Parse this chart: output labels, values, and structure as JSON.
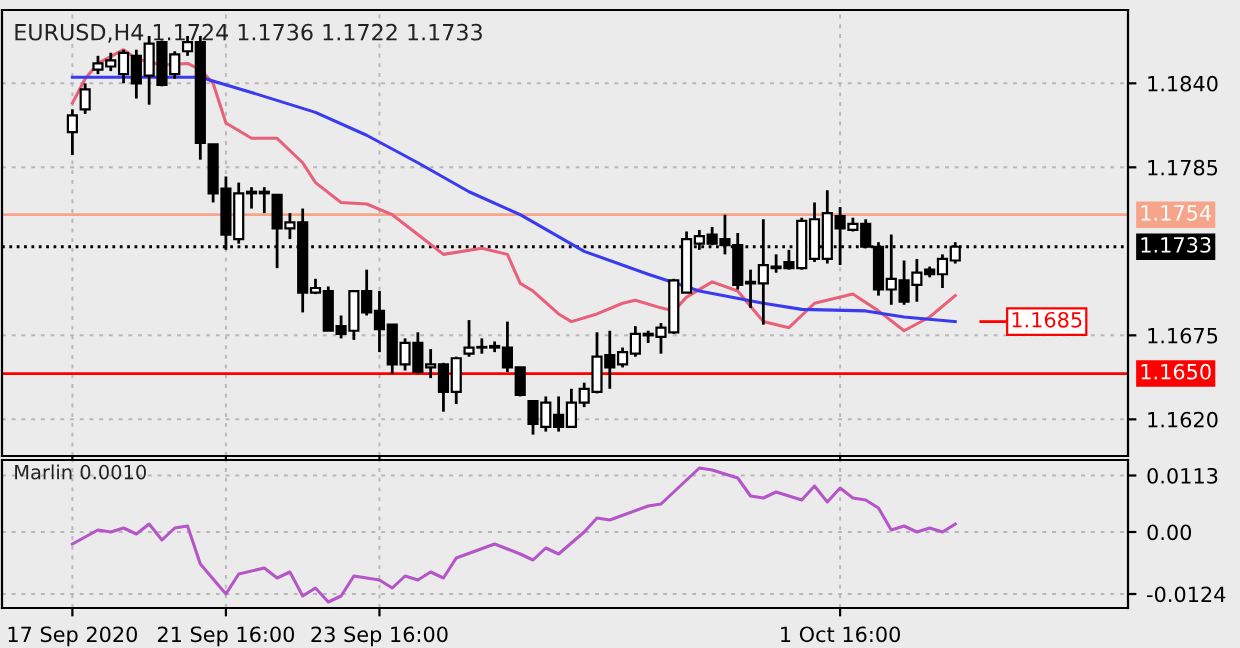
{
  "chart_data": [
    {
      "type": "candlestick",
      "annotations": [
        "EURUSD,H4 1.1724 1.1736 1.1722 1.1733",
        "1.1685"
      ],
      "categories": [
        null,
        null,
        null,
        null,
        null,
        null,
        null,
        null,
        null,
        null,
        null,
        null,
        null,
        null,
        null,
        null,
        null,
        null,
        null,
        null,
        null,
        null,
        null,
        null,
        null,
        null,
        null,
        null,
        null,
        null,
        null,
        null,
        null,
        null,
        null,
        null,
        null,
        null,
        null,
        null,
        null,
        null,
        null,
        null,
        null,
        null,
        null,
        null,
        null,
        null,
        null,
        null,
        null,
        null,
        null,
        null,
        null,
        null,
        null,
        null,
        null,
        null,
        null,
        null,
        null,
        null,
        null,
        null,
        null,
        null
      ],
      "ohlc": [
        [
          1.1808,
          1.1823,
          1.1793,
          1.1819
        ],
        [
          1.1823,
          1.184,
          1.182,
          1.1836
        ],
        [
          1.1849,
          1.1858,
          1.1846,
          1.1853
        ],
        [
          1.1851,
          1.186,
          1.1848,
          1.1855
        ],
        [
          1.1846,
          1.1862,
          1.184,
          1.186
        ],
        [
          1.1858,
          1.1862,
          1.183,
          1.184
        ],
        [
          1.1845,
          1.1871,
          1.1826,
          1.1866
        ],
        [
          1.1867,
          1.1868,
          1.1838,
          1.1839
        ],
        [
          1.1846,
          1.1861,
          1.1843,
          1.1859
        ],
        [
          1.1861,
          1.1871,
          1.1858,
          1.1867
        ],
        [
          1.1867,
          1.1871,
          1.179,
          1.1801
        ],
        [
          1.18,
          1.18,
          1.1762,
          1.1768
        ],
        [
          1.1771,
          1.1779,
          1.1731,
          1.1741
        ],
        [
          1.1738,
          1.1775,
          1.1735,
          1.1768
        ],
        [
          1.1769,
          1.1772,
          1.1758,
          1.1768
        ],
        [
          1.1768,
          1.1772,
          1.1755,
          1.1769
        ],
        [
          1.1767,
          1.1767,
          1.1719,
          1.1745
        ],
        [
          1.1745,
          1.1755,
          1.1738,
          1.1749
        ],
        [
          1.1749,
          1.1758,
          1.169,
          1.1703
        ],
        [
          1.1703,
          1.1712,
          1.1702,
          1.1706
        ],
        [
          1.1704,
          1.1707,
          1.1678,
          1.1678
        ],
        [
          1.1681,
          1.1688,
          1.1673,
          1.1676
        ],
        [
          1.1678,
          1.1704,
          1.1672,
          1.1704
        ],
        [
          1.1704,
          1.1718,
          1.1688,
          1.169
        ],
        [
          1.1691,
          1.1704,
          1.1664,
          1.1679
        ],
        [
          1.1682,
          1.1682,
          1.165,
          1.1656
        ],
        [
          1.1656,
          1.1673,
          1.1652,
          1.167
        ],
        [
          1.167,
          1.1677,
          1.165,
          1.1651
        ],
        [
          1.1654,
          1.1666,
          1.1647,
          1.1656
        ],
        [
          1.1656,
          1.1657,
          1.1625,
          1.1638
        ],
        [
          1.1638,
          1.1661,
          1.163,
          1.166
        ],
        [
          1.1663,
          1.1685,
          1.1661,
          1.1667
        ],
        [
          1.1667,
          1.1673,
          1.1663,
          1.1667
        ],
        [
          1.1667,
          1.1671,
          1.1664,
          1.1668
        ],
        [
          1.1667,
          1.1684,
          1.1651,
          1.1654
        ],
        [
          1.1654,
          1.1654,
          1.1635,
          1.1636
        ],
        [
          1.1632,
          1.1632,
          1.161,
          1.1617
        ],
        [
          1.1615,
          1.1635,
          1.1612,
          1.1631
        ],
        [
          1.1623,
          1.1635,
          1.1612,
          1.1615
        ],
        [
          1.1615,
          1.164,
          1.1615,
          1.1631
        ],
        [
          1.1631,
          1.1644,
          1.1628,
          1.164
        ],
        [
          1.1638,
          1.1677,
          1.1637,
          1.1661
        ],
        [
          1.1662,
          1.1678,
          1.164,
          1.1654
        ],
        [
          1.1656,
          1.1667,
          1.1654,
          1.1664
        ],
        [
          1.1663,
          1.1681,
          1.1661,
          1.1676
        ],
        [
          1.1675,
          1.1678,
          1.167,
          1.1676
        ],
        [
          1.1674,
          1.1683,
          1.1663,
          1.168
        ],
        [
          1.1677,
          1.1712,
          1.1676,
          1.1711
        ],
        [
          1.1703,
          1.1743,
          1.1703,
          1.1738
        ],
        [
          1.1735,
          1.1744,
          1.1731,
          1.174
        ],
        [
          1.1741,
          1.1746,
          1.1734,
          1.1735
        ],
        [
          1.1738,
          1.1754,
          1.1728,
          1.1734
        ],
        [
          1.1734,
          1.1742,
          1.1705,
          1.1708
        ],
        [
          1.171,
          1.1718,
          1.1693,
          1.1709
        ],
        [
          1.1709,
          1.1751,
          1.1682,
          1.1721
        ],
        [
          1.1719,
          1.1728,
          1.1716,
          1.172
        ],
        [
          1.1723,
          1.1731,
          1.1718,
          1.1719
        ],
        [
          1.1719,
          1.1752,
          1.1718,
          1.175
        ],
        [
          1.1725,
          1.1762,
          1.1723,
          1.1751
        ],
        [
          1.1725,
          1.177,
          1.1722,
          1.1755
        ],
        [
          1.1753,
          1.1759,
          1.1721,
          1.1745
        ],
        [
          1.1744,
          1.1752,
          1.1743,
          1.1748
        ],
        [
          1.1748,
          1.1751,
          1.1732,
          1.1733
        ],
        [
          1.1733,
          1.1736,
          1.1701,
          1.1705
        ],
        [
          1.1705,
          1.1741,
          1.1695,
          1.1712
        ],
        [
          1.1711,
          1.1724,
          1.1695,
          1.1697
        ],
        [
          1.1708,
          1.1725,
          1.1697,
          1.1716
        ],
        [
          1.1718,
          1.172,
          1.1713,
          1.1715
        ],
        [
          1.1715,
          1.1728,
          1.1706,
          1.1725
        ],
        [
          1.1724,
          1.1736,
          1.1722,
          1.1733
        ]
      ],
      "color": "#000000",
      "series": [
        {
          "type": "line",
          "color": "#e8607a",
          "values": [
            1.1827,
            1.1843,
            1.1853,
            null,
            1.1862,
            1.1856,
            null,
            1.1852,
            null,
            1.1853,
            1.1849,
            1.184,
            1.1814,
            null,
            1.1804,
            null,
            1.1804,
            null,
            1.1788,
            1.1775,
            null,
            1.1762,
            null,
            1.1761,
            null,
            1.1754,
            null,
            1.1741,
            null,
            1.1728,
            null,
            null,
            1.1732,
            null,
            1.1728,
            1.1709,
            1.1704,
            null,
            1.1689,
            1.1684,
            null,
            1.1689,
            null,
            1.1696,
            1.1698,
            null,
            1.1693,
            1.1691,
            1.17,
            null,
            1.171,
            null,
            1.1704,
            null,
            1.1684,
            null,
            1.168,
            null,
            1.1696,
            null,
            null,
            1.1702,
            null,
            1.1691,
            null,
            1.1678,
            null,
            1.1687,
            null,
            1.1701
          ]
        },
        {
          "type": "line",
          "color": "#3a3af0",
          "values": [
            1.1844,
            null,
            null,
            null,
            null,
            null,
            null,
            null,
            null,
            null,
            1.1844,
            null,
            null,
            null,
            1.1834,
            null,
            null,
            null,
            null,
            1.1821,
            null,
            null,
            null,
            1.1806,
            null,
            null,
            null,
            1.1788,
            null,
            null,
            null,
            1.1769,
            null,
            null,
            null,
            1.1754,
            null,
            null,
            null,
            null,
            1.173,
            null,
            null,
            null,
            null,
            1.1715,
            null,
            null,
            null,
            1.1704,
            null,
            null,
            null,
            null,
            1.1696,
            null,
            null,
            1.1692,
            null,
            null,
            null,
            null,
            1.1691,
            null,
            null,
            1.1687,
            null,
            null,
            null,
            1.1684
          ]
        }
      ],
      "ylim": [
        1.1596,
        1.1888
      ],
      "yticks": [
        {
          "value": 1.184,
          "label": "1.1840"
        },
        1.1785,
        1.1675,
        {
          "value": 1.162,
          "label": "1.1620"
        }
      ],
      "ref_lines": [
        {
          "axis": "y",
          "value": 1.1754,
          "label": "1.1754",
          "color": "#f7a58a"
        },
        {
          "axis": "y",
          "value": 1.1733,
          "label": "1.1733",
          "color": "#000000",
          "line_style": "dotted"
        },
        {
          "axis": "y",
          "value": 1.165,
          "label": "1.1650",
          "color": "#ff0000"
        }
      ],
      "grid": true,
      "tick_labels": "y"
    },
    {
      "type": "line",
      "annotations": [
        "Marlin 0.0010"
      ],
      "categories": [
        "17 Sep 2020",
        null,
        null,
        null,
        null,
        null,
        null,
        null,
        null,
        null,
        null,
        null,
        "21 Sep 16:00",
        null,
        null,
        null,
        null,
        null,
        null,
        null,
        null,
        null,
        null,
        null,
        "23 Sep 16:00",
        null,
        null,
        null,
        null,
        null,
        null,
        null,
        null,
        null,
        null,
        null,
        null,
        null,
        null,
        null,
        null,
        null,
        null,
        null,
        null,
        null,
        null,
        null,
        null,
        null,
        null,
        null,
        null,
        null,
        null,
        null,
        null,
        null,
        null,
        null,
        "1 Oct 16:00",
        null,
        null,
        null,
        null,
        null,
        null,
        null,
        null,
        null
      ],
      "series": [
        {
          "color": "#b455c8",
          "values": [
            -0.0024,
            null,
            0.0004,
            0,
            0.0008,
            -0.0004,
            0.0016,
            -0.0016,
            0.0008,
            0.0012,
            -0.0064,
            null,
            -0.0124,
            -0.0084,
            null,
            -0.0072,
            -0.0092,
            -0.008,
            -0.0128,
            -0.0112,
            -0.014,
            -0.0128,
            -0.0088,
            null,
            -0.0096,
            -0.0112,
            -0.0088,
            -0.0096,
            -0.008,
            -0.0092,
            -0.0052,
            null,
            null,
            -0.0024,
            null,
            -0.0044,
            -0.0056,
            -0.0032,
            -0.0044,
            null,
            0,
            0.0028,
            0.0024,
            null,
            null,
            0.0052,
            0.0056,
            0.008,
            null,
            0.0128,
            0.0124,
            null,
            0.0108,
            0.0072,
            0.0068,
            0.008,
            null,
            0.0064,
            0.0092,
            0.006,
            0.0088,
            0.0068,
            0.0064,
            0.0048,
            0.0004,
            0.0012,
            0,
            0.0008,
            0,
            0.0016
          ]
        }
      ],
      "ylim": [
        -0.0152,
        0.0144
      ],
      "yticks": [
        0.0113,
        {
          "value": 0,
          "label": "0.00"
        },
        {
          "value": -0.0124,
          "label": "-0.0124"
        }
      ],
      "grid": true
    }
  ]
}
